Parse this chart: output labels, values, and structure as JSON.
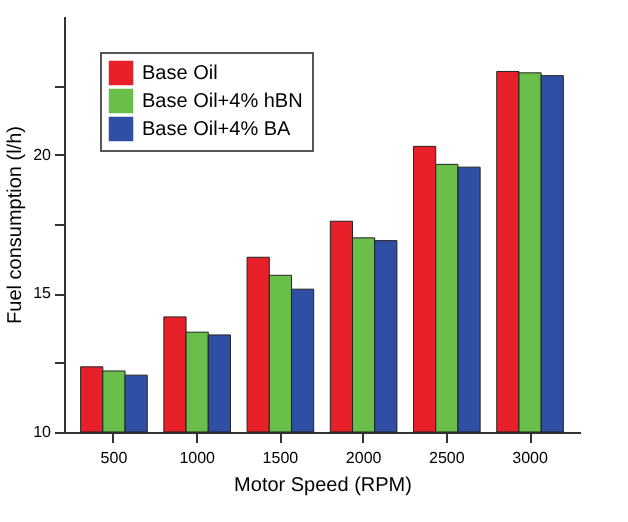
{
  "chart_data": {
    "type": "bar",
    "xlabel": "Motor Speed (RPM)",
    "ylabel": "Fuel consumption (l/h)",
    "categories": [
      "500",
      "1000",
      "1500",
      "2000",
      "2500",
      "3000"
    ],
    "series": [
      {
        "name": "Base Oil",
        "color": "#e8202a",
        "values": [
          12.35,
          14.15,
          16.3,
          17.6,
          20.3,
          23.0
        ]
      },
      {
        "name": "Base Oil+4% hBN",
        "color": "#6abf4b",
        "values": [
          12.2,
          13.6,
          15.65,
          17.0,
          19.65,
          22.95
        ]
      },
      {
        "name": "Base Oil+4% BA",
        "color": "#2e4fa3",
        "values": [
          12.05,
          13.5,
          15.15,
          16.9,
          19.55,
          22.85
        ]
      }
    ],
    "ylim": [
      10,
      25
    ],
    "yticks": [
      10,
      {
        "value": 12.5,
        "label": null
      },
      15,
      {
        "value": 17.5,
        "label": null
      },
      20,
      {
        "value": 22.5,
        "label": null
      }
    ],
    "grid": false,
    "legend": "top left"
  }
}
